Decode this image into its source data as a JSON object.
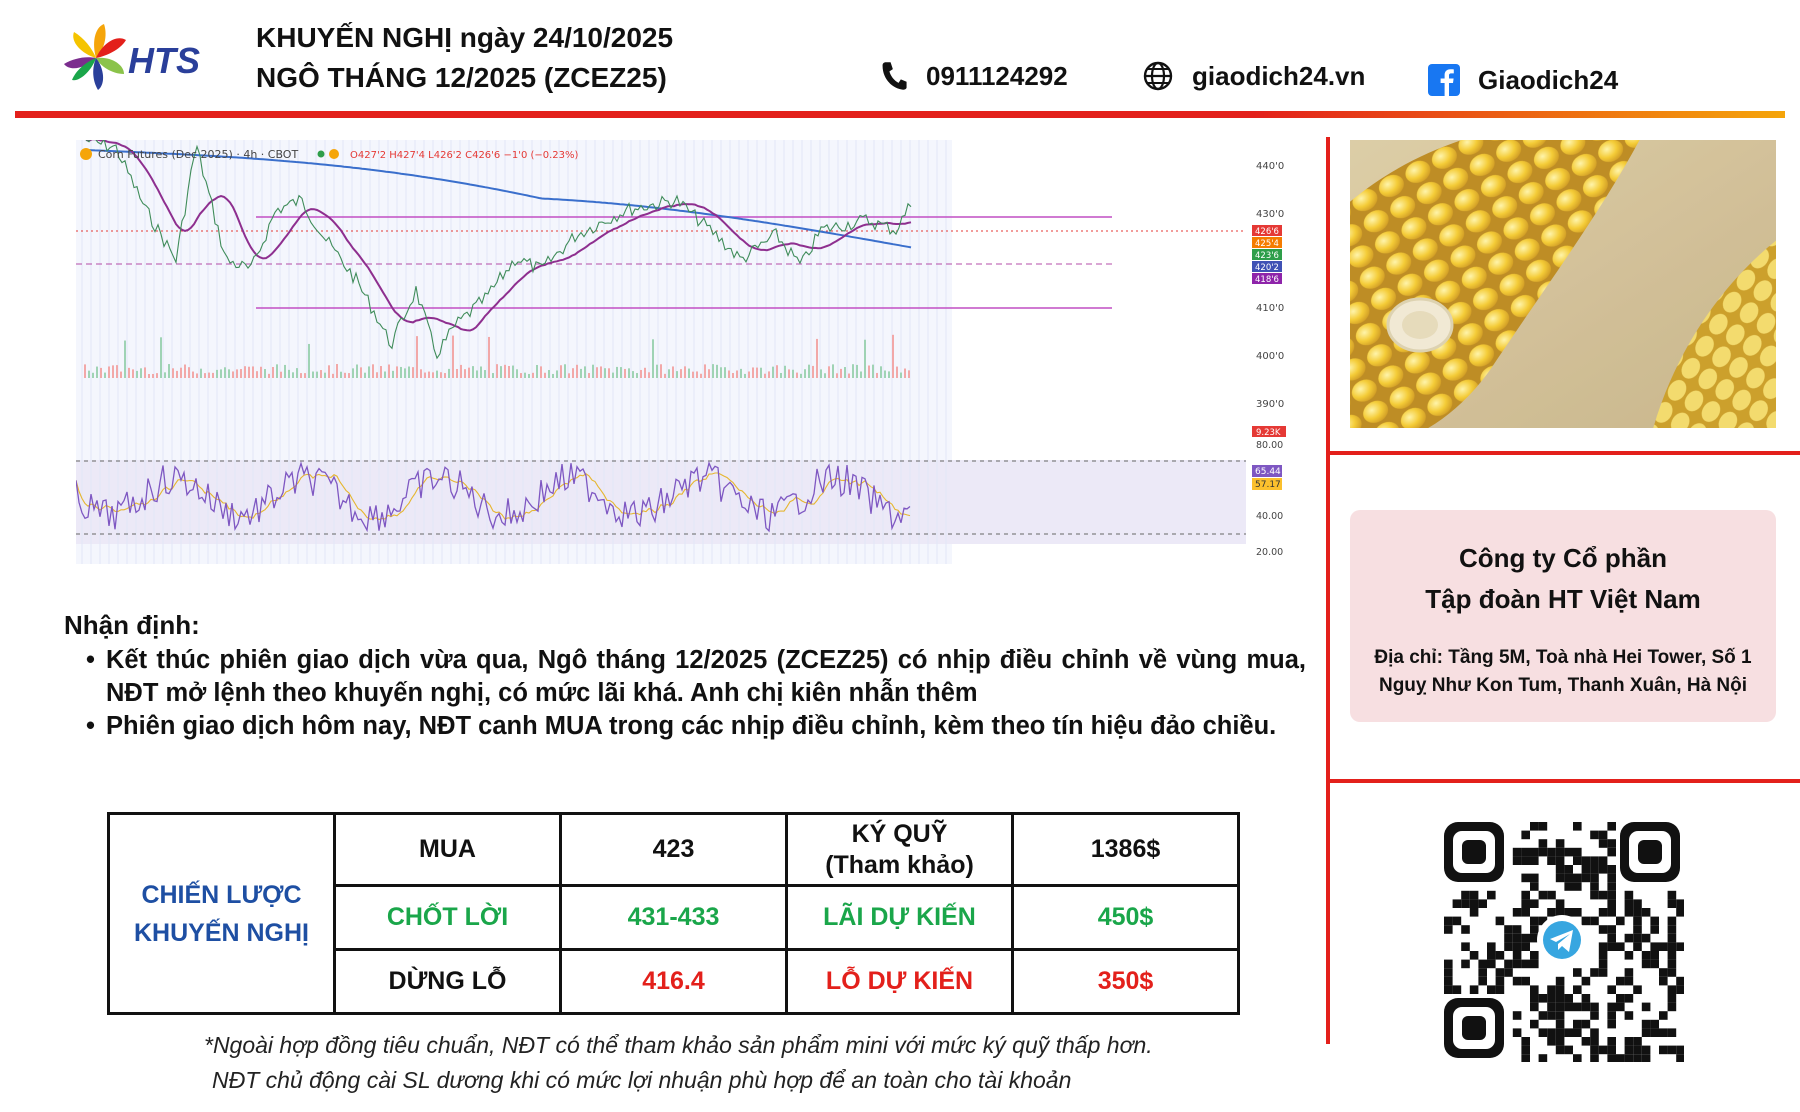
{
  "header": {
    "logo_text": "HTS",
    "title_line1": "KHUYẾN NGHỊ ngày 24/10/2025",
    "title_line2": "NGÔ THÁNG 12/2025 (ZCEZ25)",
    "phone": "0911124292",
    "website": "giaodich24.vn",
    "facebook": "Giaodich24"
  },
  "chart": {
    "legend": "Corn Futures (Dec 2025) · 4h · CBOT",
    "ohlc": "O427'2 H427'4 L426'2 C426'6 −1'0 (−0.23%)",
    "price_ticks": [
      "440'0",
      "430'0",
      "410'0",
      "400'0",
      "390'0"
    ],
    "price_labels": [
      {
        "text": "426'6",
        "color": "#e53935"
      },
      {
        "text": "425'4",
        "color": "#f57c00"
      },
      {
        "text": "423'6",
        "color": "#2e9e4a"
      },
      {
        "text": "420'2",
        "color": "#3f51b5"
      },
      {
        "text": "418'6",
        "color": "#8e24aa"
      }
    ],
    "volume_label": "9.23K",
    "rsi_ticks": [
      "80.00",
      "40.00",
      "20.00"
    ],
    "rsi_labels": [
      {
        "text": "65.44",
        "color": "#7e57c2"
      },
      {
        "text": "57.17",
        "color": "#fbc02d"
      }
    ]
  },
  "analysis": {
    "title": "Nhận định:",
    "points": [
      "Kết thúc phiên giao dịch vừa qua, Ngô tháng 12/2025 (ZCEZ25) có nhịp điều chỉnh về vùng mua, NĐT mở lệnh theo khuyến nghị, có mức lãi khá. Anh chị kiên nhẫn thêm",
      "Phiên giao dịch hôm nay, NĐT canh MUA trong các nhịp điều chỉnh, kèm theo tín hiệu đảo chiều."
    ]
  },
  "strategy": {
    "label_line1": "CHIẾN LƯỢC",
    "label_line2": "KHUYẾN NGHỊ",
    "buy_label": "MUA",
    "buy_value": "423",
    "margin_label_line1": "KÝ QUỸ",
    "margin_label_line2": "(Tham khảo)",
    "margin_value": "1386$",
    "tp_label": "CHỐT LỜI",
    "tp_value": "431-433",
    "profit_label": "LÃI DỰ KIẾN",
    "profit_value": "450$",
    "sl_label": "DỪNG LỖ",
    "sl_value": "416.4",
    "loss_label": "LỖ DỰ KIẾN",
    "loss_value": "350$"
  },
  "notes": {
    "line1": "*Ngoài hợp đồng tiêu chuẩn, NĐT có thể tham khảo sản phẩm mini với mức ký quỹ thấp hơn.",
    "line2": "NĐT chủ động cài SL dương khi có mức lợi nhuận phù hợp để an toàn cho tài khoản"
  },
  "company": {
    "name_line1": "Công ty Cổ phần",
    "name_line2": "Tập đoàn HT Việt Nam",
    "address_line1": "Địa chỉ: Tầng 5M, Toà nhà Hei Tower, Số 1",
    "address_line2": "Nguỵ Như Kon Tum, Thanh Xuân, Hà Nội"
  },
  "icons": {
    "phone": "phone-icon",
    "web": "globe-icon",
    "facebook": "facebook-icon",
    "qr": "telegram-qr-code"
  },
  "colors": {
    "accent_red": "#e3201b",
    "accent_orange": "#f5a50a",
    "blue": "#1e4fa3",
    "green": "#1aa64a",
    "facebook": "#1877f2"
  }
}
